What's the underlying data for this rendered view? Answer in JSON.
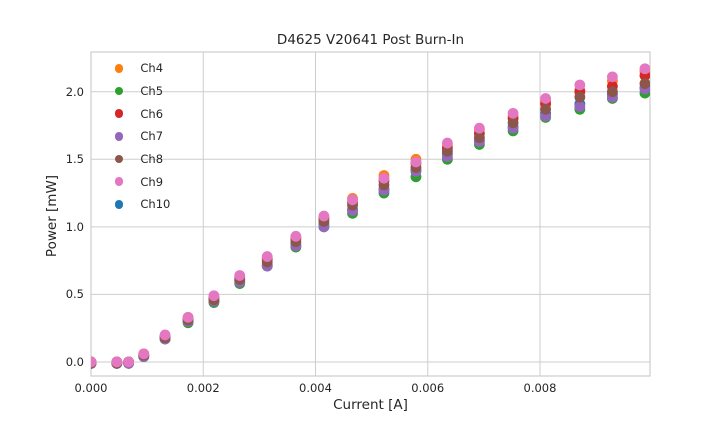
{
  "figure": {
    "title": "D4625 V20641 Post Burn-In",
    "xlabel": "Current [A]",
    "ylabel": "Power [mW]",
    "background_color": "#ffffff",
    "text_color": "#262626",
    "grid_color": "#cdcdcd"
  },
  "chart_data": {
    "type": "scatter",
    "title": "D4625 V20641 Post Burn-In",
    "xlabel": "Current [A]",
    "ylabel": "Power [mW]",
    "grid": true,
    "legend_position": "upper left",
    "xlim": [
      0.0,
      0.00996
    ],
    "ylim": [
      -0.104,
      2.294
    ],
    "xticks": [
      0.0,
      0.002,
      0.004,
      0.006,
      0.008
    ],
    "xtick_labels": [
      "0.000",
      "0.002",
      "0.004",
      "0.006",
      "0.008"
    ],
    "yticks": [
      0.0,
      0.5,
      1.0,
      1.5,
      2.0
    ],
    "ytick_labels": [
      "0.0",
      "0.5",
      "1.0",
      "1.5",
      "2.0"
    ],
    "x": [
      0.0,
      0.00046,
      0.00067,
      0.00094,
      0.00132,
      0.00173,
      0.00219,
      0.00265,
      0.00314,
      0.00365,
      0.00415,
      0.00466,
      0.00522,
      0.00579,
      0.00635,
      0.00692,
      0.00752,
      0.0081,
      0.00871,
      0.00929,
      0.00987
    ],
    "series": [
      {
        "name": "Ch4",
        "color": "#ff7f0e",
        "values": [
          0.0,
          0.0,
          0.0,
          0.06,
          0.19,
          0.33,
          0.48,
          0.63,
          0.77,
          0.92,
          1.07,
          1.21,
          1.38,
          1.5,
          1.6,
          1.72,
          1.82,
          1.93,
          2.01,
          2.08,
          2.15
        ]
      },
      {
        "name": "Ch5",
        "color": "#2ca02c",
        "values": [
          -0.01,
          -0.01,
          -0.01,
          0.04,
          0.17,
          0.29,
          0.44,
          0.58,
          0.71,
          0.85,
          1.0,
          1.1,
          1.25,
          1.37,
          1.5,
          1.61,
          1.71,
          1.81,
          1.87,
          1.95,
          1.99
        ]
      },
      {
        "name": "Ch6",
        "color": "#d62728",
        "values": [
          0.0,
          0.0,
          0.0,
          0.05,
          0.19,
          0.32,
          0.47,
          0.62,
          0.76,
          0.91,
          1.06,
          1.18,
          1.34,
          1.47,
          1.58,
          1.69,
          1.8,
          1.91,
          2.0,
          2.04,
          2.12
        ]
      },
      {
        "name": "Ch7",
        "color": "#9467bd",
        "values": [
          -0.01,
          -0.01,
          -0.01,
          0.04,
          0.17,
          0.3,
          0.45,
          0.59,
          0.71,
          0.86,
          1.0,
          1.12,
          1.27,
          1.41,
          1.52,
          1.63,
          1.73,
          1.82,
          1.89,
          1.96,
          2.02
        ]
      },
      {
        "name": "Ch8",
        "color": "#8c564b",
        "values": [
          -0.01,
          -0.01,
          0.0,
          0.05,
          0.18,
          0.31,
          0.46,
          0.61,
          0.74,
          0.89,
          1.04,
          1.16,
          1.31,
          1.44,
          1.56,
          1.66,
          1.77,
          1.87,
          1.96,
          2.0,
          2.06
        ]
      },
      {
        "name": "Ch9",
        "color": "#e377c2",
        "values": [
          0.0,
          0.0,
          0.0,
          0.06,
          0.2,
          0.33,
          0.49,
          0.64,
          0.78,
          0.93,
          1.08,
          1.2,
          1.36,
          1.48,
          1.62,
          1.73,
          1.84,
          1.95,
          2.05,
          2.11,
          2.17
        ]
      },
      {
        "name": "Ch10",
        "color": "#1f77b4",
        "values": [
          -0.01,
          -0.01,
          -0.01,
          0.04,
          0.17,
          0.3,
          0.45,
          0.6,
          0.72,
          0.87,
          1.02,
          1.13,
          1.28,
          1.42,
          1.54,
          1.64,
          1.74,
          1.84,
          1.91,
          1.98,
          2.03
        ]
      }
    ],
    "draw_order": [
      "Ch10",
      "Ch4",
      "Ch5",
      "Ch6",
      "Ch7",
      "Ch8",
      "Ch9"
    ],
    "marker_radius_px": 5.4
  }
}
